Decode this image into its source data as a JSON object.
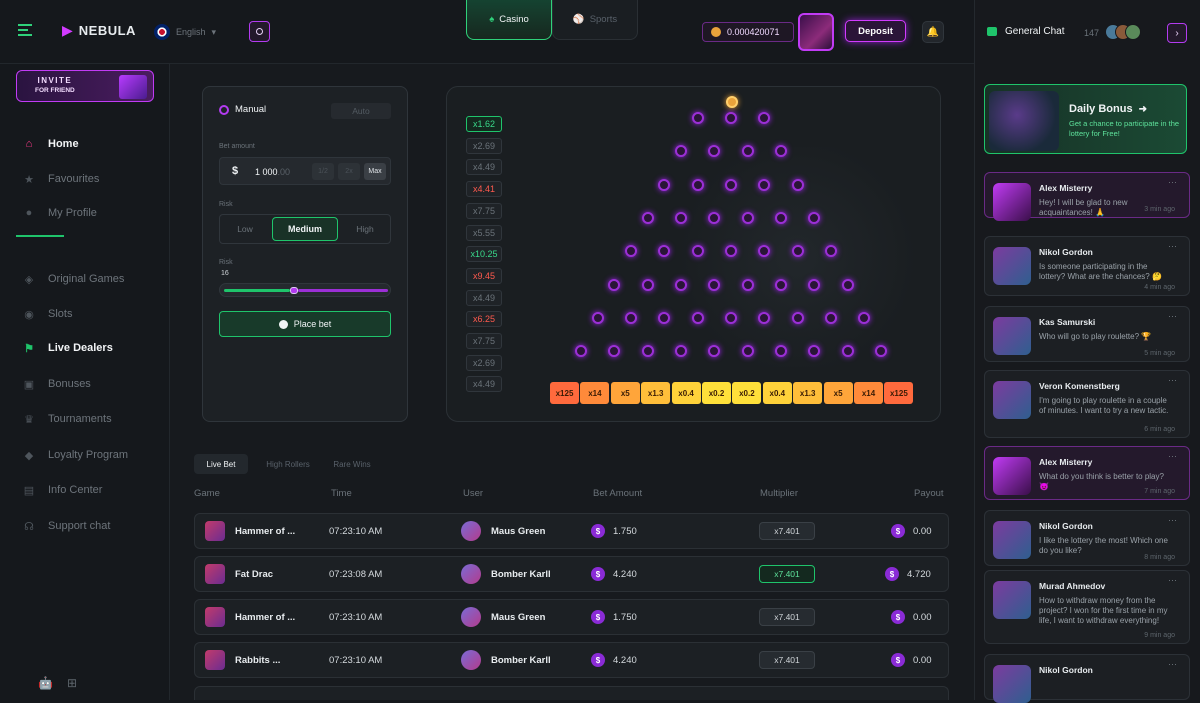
{
  "brand": {
    "name": "NEBULA"
  },
  "header": {
    "language": "English",
    "tabs": [
      {
        "label": "Casino"
      },
      {
        "label": "Sports"
      }
    ],
    "balance": "0.000420071",
    "deposit_label": "Deposit"
  },
  "sidebar": {
    "invite_line1": "INVITE",
    "invite_line2": "FOR FRIEND",
    "items": [
      {
        "label": "Home",
        "icon": "home-icon",
        "active": true
      },
      {
        "label": "Favourites",
        "icon": "star-icon"
      },
      {
        "label": "My Profile",
        "icon": "user-icon"
      },
      {
        "label": "Original Games",
        "icon": "dice-icon"
      },
      {
        "label": "Slots",
        "icon": "slots-icon"
      },
      {
        "label": "Live Dealers",
        "icon": "flag-icon",
        "active": true
      },
      {
        "label": "Bonuses",
        "icon": "gift-icon"
      },
      {
        "label": "Tournaments",
        "icon": "trophy-icon"
      },
      {
        "label": "Loyalty Program",
        "icon": "loyalty-icon"
      },
      {
        "label": "Info Center",
        "icon": "info-icon"
      },
      {
        "label": "Support chat",
        "icon": "headset-icon"
      }
    ]
  },
  "bet_panel": {
    "mode_manual": "Manual",
    "mode_auto": "Auto",
    "bet_amount_label": "Bet amount",
    "currency": "$",
    "bet_value": "1 000",
    "bet_decimals": ".00",
    "half_label": "1/2",
    "double_label": "2x",
    "max_label": "Max",
    "risk_label": "Risk",
    "risk_options": [
      "Low",
      "Medium",
      "High"
    ],
    "rows_label": "Risk",
    "rows_value": "16",
    "rows_fraction": 0.4,
    "place_bet_label": "Place bet"
  },
  "plinko": {
    "multipliers": [
      {
        "label": "x1.62",
        "color": "#39d98a",
        "active": true
      },
      {
        "label": "x2.69",
        "color": "#6b737a"
      },
      {
        "label": "x4.49",
        "color": "#6b737a"
      },
      {
        "label": "x4.41",
        "color": "#ff5a4e"
      },
      {
        "label": "x7.75",
        "color": "#6b737a"
      },
      {
        "label": "x5.55",
        "color": "#6b737a"
      },
      {
        "label": "x10.25",
        "color": "#39d98a"
      },
      {
        "label": "x9.45",
        "color": "#ff5a4e"
      },
      {
        "label": "x4.49",
        "color": "#6b737a"
      },
      {
        "label": "x6.25",
        "color": "#ff5a4e"
      },
      {
        "label": "x7.75",
        "color": "#6b737a"
      },
      {
        "label": "x2.69",
        "color": "#6b737a"
      },
      {
        "label": "x4.49",
        "color": "#6b737a"
      }
    ],
    "buckets": [
      {
        "label": "x125",
        "color": "#ff6a3d"
      },
      {
        "label": "x14",
        "color": "#ff8a3a"
      },
      {
        "label": "x5",
        "color": "#ffa53a"
      },
      {
        "label": "x1.3",
        "color": "#ffbe3a"
      },
      {
        "label": "x0.4",
        "color": "#ffd23a"
      },
      {
        "label": "x0.2",
        "color": "#ffe03a"
      },
      {
        "label": "x0.2",
        "color": "#ffe03a"
      },
      {
        "label": "x0.4",
        "color": "#ffd23a"
      },
      {
        "label": "x1.3",
        "color": "#ffbe3a"
      },
      {
        "label": "x5",
        "color": "#ffa53a"
      },
      {
        "label": "x14",
        "color": "#ff8a3a"
      },
      {
        "label": "x125",
        "color": "#ff6a3d"
      }
    ]
  },
  "bets": {
    "tabs": [
      "Live Bet",
      "High Rollers",
      "Rare Wins"
    ],
    "columns": [
      "Game",
      "Time",
      "User",
      "Bet Amount",
      "Multiplier",
      "Payout"
    ],
    "rows": [
      {
        "game": "Hammer of ...",
        "time": "07:23:10 AM",
        "user": "Maus Green",
        "amount": "1.750",
        "multiplier": "x7.401",
        "win": false,
        "payout": "0.00"
      },
      {
        "game": "Fat Drac",
        "time": "07:23:08 AM",
        "user": "Bomber Karll",
        "amount": "4.240",
        "multiplier": "x7.401",
        "win": true,
        "payout": "4.720"
      },
      {
        "game": "Hammer of ...",
        "time": "07:23:10 AM",
        "user": "Maus Green",
        "amount": "1.750",
        "multiplier": "x7.401",
        "win": false,
        "payout": "0.00"
      },
      {
        "game": "Rabbits ...",
        "time": "07:23:10 AM",
        "user": "Bomber Karll",
        "amount": "4.240",
        "multiplier": "x7.401",
        "win": false,
        "payout": "0.00"
      }
    ]
  },
  "chat": {
    "title": "General Chat",
    "online": "147",
    "bonus_title": "Daily Bonus",
    "bonus_text": "Get a chance to participate in the lottery for Free!",
    "messages": [
      {
        "name": "Alex Misterry",
        "text": "Hey! I will be glad to new acquaintances! 🙏",
        "time": "3 min ago",
        "hl": true
      },
      {
        "name": "Nikol Gordon",
        "text": "Is someone participating in the lottery? What are the chances? 🤔",
        "time": "4 min ago"
      },
      {
        "name": "Kas Samurski",
        "text": "Who will go to play roulette? 🏆",
        "time": "5 min ago"
      },
      {
        "name": "Veron Komenstberg",
        "text": "I'm going to play roulette in a couple of minutes. I want to try a new tactic.",
        "time": "6 min ago"
      },
      {
        "name": "Alex Misterry",
        "text": "What do you think is better to play? 😈",
        "time": "7 min ago",
        "hl": true
      },
      {
        "name": "Nikol Gordon",
        "text": "I like the lottery the most! Which one do you like?",
        "time": "8 min ago"
      },
      {
        "name": "Murad Ahmedov",
        "text": "How to withdraw money from the project? I won for the first time in my life, I want to withdraw everything!",
        "time": "9 min ago"
      },
      {
        "name": "Nikol Gordon",
        "text": "",
        "time": ""
      }
    ]
  }
}
